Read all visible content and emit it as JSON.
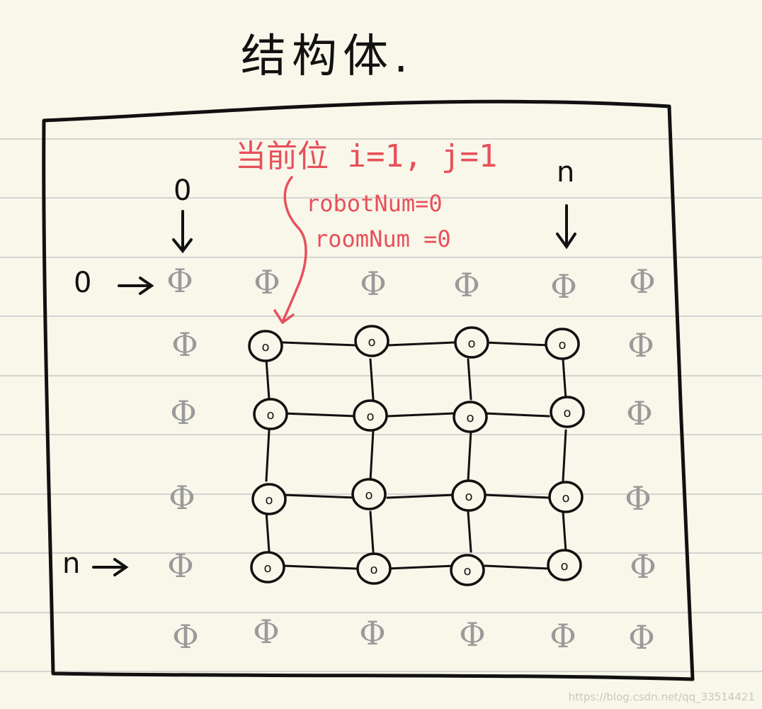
{
  "title": "结构体.",
  "annotation": {
    "header": "当前位 i=1, j=1",
    "lines": [
      "robotNum=0",
      "roomNum =0"
    ],
    "color": "#e8505b"
  },
  "axis_labels": {
    "col_start": "0",
    "col_end": "n",
    "row_start": "0",
    "row_end": "n"
  },
  "grid": {
    "rows": 6,
    "cols": 6,
    "border_symbol": "Φ",
    "inner_symbol": "o",
    "border_color": "#9a9a9a",
    "inner_color": "#111111",
    "inner_rows": [
      1,
      2,
      3,
      4
    ],
    "inner_cols": [
      1,
      2,
      3,
      4
    ]
  },
  "watermark": "https://blog.csdn.net/qq_33514421",
  "colors": {
    "paper": "#f8f7ea",
    "rule_lines": "#d4d4d0",
    "ink": "#111111"
  }
}
